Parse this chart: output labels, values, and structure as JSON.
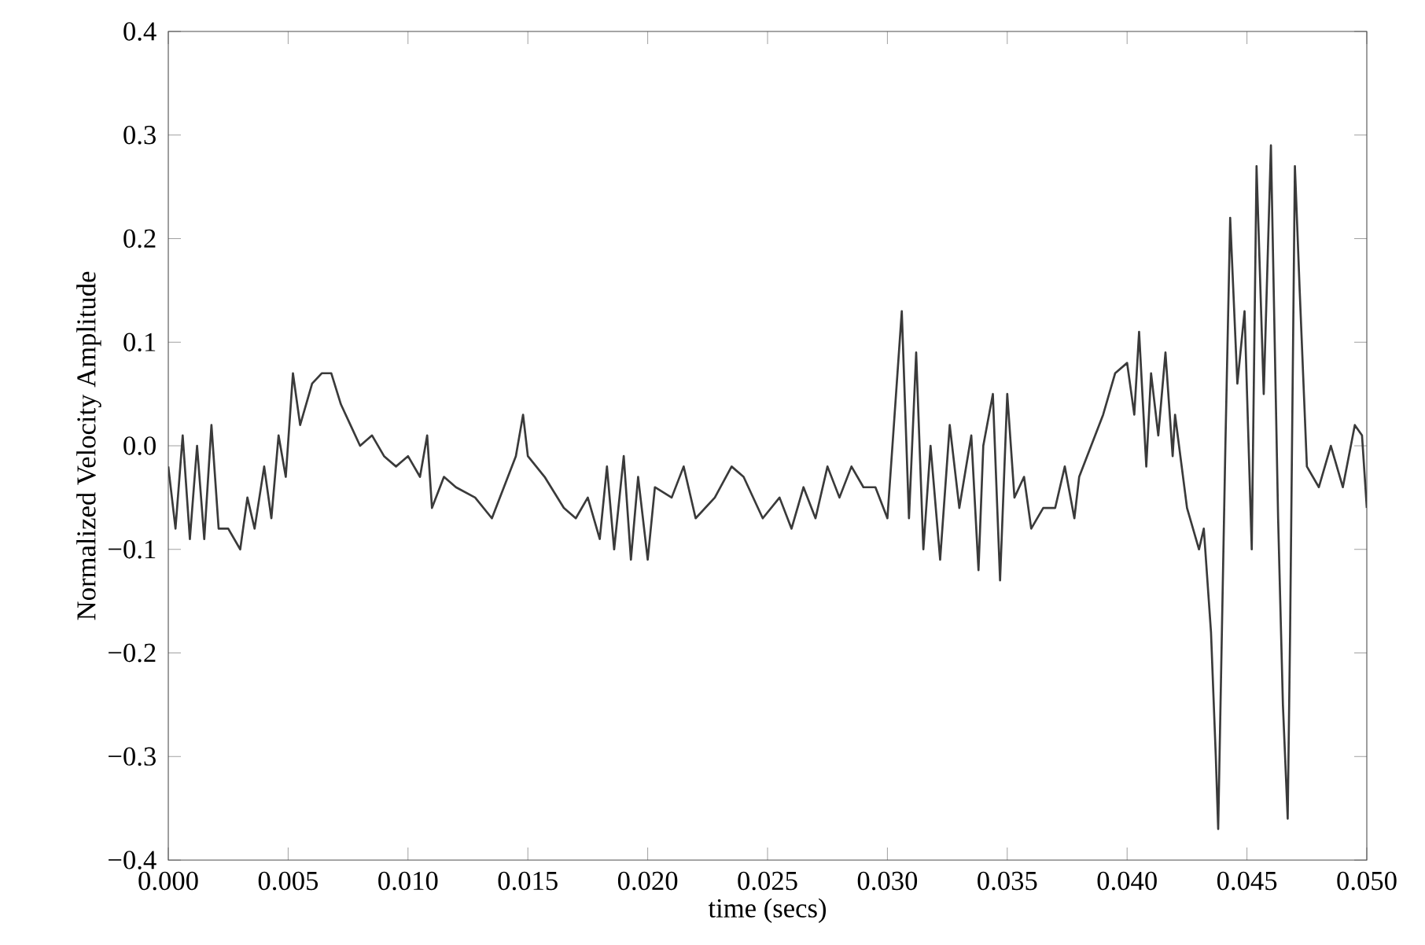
{
  "chart_data": {
    "type": "line",
    "xlabel": "time (secs)",
    "ylabel": "Normalized Velocity Amplitude",
    "xlim": [
      0,
      0.05
    ],
    "ylim": [
      -0.4,
      0.4
    ],
    "xticks": [
      {
        "value": 0,
        "label": "0.000"
      },
      {
        "value": 0.005,
        "label": "0.005"
      },
      {
        "value": 0.01,
        "label": "0.010"
      },
      {
        "value": 0.015,
        "label": "0.015"
      },
      {
        "value": 0.02,
        "label": "0.020"
      },
      {
        "value": 0.025,
        "label": "0.025"
      },
      {
        "value": 0.03,
        "label": "0.030"
      },
      {
        "value": 0.035,
        "label": "0.035"
      },
      {
        "value": 0.04,
        "label": "0.040"
      },
      {
        "value": 0.045,
        "label": "0.045"
      },
      {
        "value": 0.05,
        "label": "0.050"
      }
    ],
    "yticks": [
      {
        "value": -0.4,
        "label": "−0.4"
      },
      {
        "value": -0.3,
        "label": "−0.3"
      },
      {
        "value": -0.2,
        "label": "−0.2"
      },
      {
        "value": -0.1,
        "label": "−0.1"
      },
      {
        "value": 0,
        "label": "0.0"
      },
      {
        "value": 0.1,
        "label": "0.1"
      },
      {
        "value": 0.2,
        "label": "0.2"
      },
      {
        "value": 0.3,
        "label": "0.3"
      },
      {
        "value": 0.4,
        "label": "0.4"
      }
    ],
    "marker": "none",
    "line_style": "solid",
    "series": [
      {
        "color": "#3a3a3a",
        "x": [
          0,
          0.0003,
          0.0006,
          0.0009,
          0.0012,
          0.0015,
          0.0018,
          0.0021,
          0.0025,
          0.003,
          0.0033,
          0.0036,
          0.004,
          0.0043,
          0.0046,
          0.0049,
          0.0052,
          0.0055,
          0.006,
          0.0064,
          0.0068,
          0.0072,
          0.0076,
          0.008,
          0.0085,
          0.009,
          0.0095,
          0.01,
          0.0105,
          0.0108,
          0.011,
          0.0115,
          0.012,
          0.0128,
          0.0135,
          0.014,
          0.0145,
          0.0148,
          0.015,
          0.0157,
          0.0165,
          0.017,
          0.0175,
          0.018,
          0.0183,
          0.0186,
          0.019,
          0.0193,
          0.0196,
          0.02,
          0.0203,
          0.021,
          0.0215,
          0.022,
          0.0228,
          0.0235,
          0.024,
          0.0248,
          0.0255,
          0.026,
          0.0265,
          0.027,
          0.0275,
          0.028,
          0.0285,
          0.029,
          0.0295,
          0.03,
          0.0303,
          0.0306,
          0.0309,
          0.0312,
          0.0315,
          0.0318,
          0.0322,
          0.0326,
          0.033,
          0.0335,
          0.0338,
          0.034,
          0.0344,
          0.0347,
          0.035,
          0.0353,
          0.0357,
          0.036,
          0.0365,
          0.037,
          0.0374,
          0.0378,
          0.038,
          0.0385,
          0.039,
          0.0395,
          0.04,
          0.0403,
          0.0405,
          0.0408,
          0.041,
          0.0413,
          0.0416,
          0.0419,
          0.042,
          0.0425,
          0.043,
          0.0432,
          0.0435,
          0.0437,
          0.0438,
          0.0441,
          0.0443,
          0.0446,
          0.0449,
          0.0452,
          0.0454,
          0.0457,
          0.046,
          0.0463,
          0.0465,
          0.0467,
          0.0468,
          0.047,
          0.0472,
          0.0475,
          0.048,
          0.0485,
          0.049,
          0.0495,
          0.0498,
          0.05
        ],
        "values": [
          -0.02,
          -0.08,
          0.01,
          -0.09,
          0.0,
          -0.09,
          0.02,
          -0.08,
          -0.08,
          -0.1,
          -0.05,
          -0.08,
          -0.02,
          -0.07,
          0.01,
          -0.03,
          0.07,
          0.02,
          0.06,
          0.07,
          0.07,
          0.04,
          0.02,
          0.0,
          0.01,
          -0.01,
          -0.02,
          -0.01,
          -0.03,
          0.01,
          -0.06,
          -0.03,
          -0.04,
          -0.05,
          -0.07,
          -0.04,
          -0.01,
          0.03,
          -0.01,
          -0.03,
          -0.06,
          -0.07,
          -0.05,
          -0.09,
          -0.02,
          -0.1,
          -0.01,
          -0.11,
          -0.03,
          -0.11,
          -0.04,
          -0.05,
          -0.02,
          -0.07,
          -0.05,
          -0.02,
          -0.03,
          -0.07,
          -0.05,
          -0.08,
          -0.04,
          -0.07,
          -0.02,
          -0.05,
          -0.02,
          -0.04,
          -0.04,
          -0.07,
          0.03,
          0.13,
          -0.07,
          0.09,
          -0.1,
          0.0,
          -0.11,
          0.02,
          -0.06,
          0.01,
          -0.12,
          0.0,
          0.05,
          -0.13,
          0.05,
          -0.05,
          -0.03,
          -0.08,
          -0.06,
          -0.06,
          -0.02,
          -0.07,
          -0.03,
          0.0,
          0.03,
          0.07,
          0.08,
          0.03,
          0.11,
          -0.02,
          0.07,
          0.01,
          0.09,
          -0.01,
          0.03,
          -0.06,
          -0.1,
          -0.08,
          -0.18,
          -0.3,
          -0.37,
          0.0,
          0.22,
          0.06,
          0.13,
          -0.1,
          0.27,
          0.05,
          0.29,
          -0.07,
          -0.25,
          -0.36,
          -0.18,
          0.27,
          0.15,
          -0.02,
          -0.04,
          0.0,
          -0.04,
          0.02,
          0.01,
          -0.06
        ]
      }
    ]
  }
}
